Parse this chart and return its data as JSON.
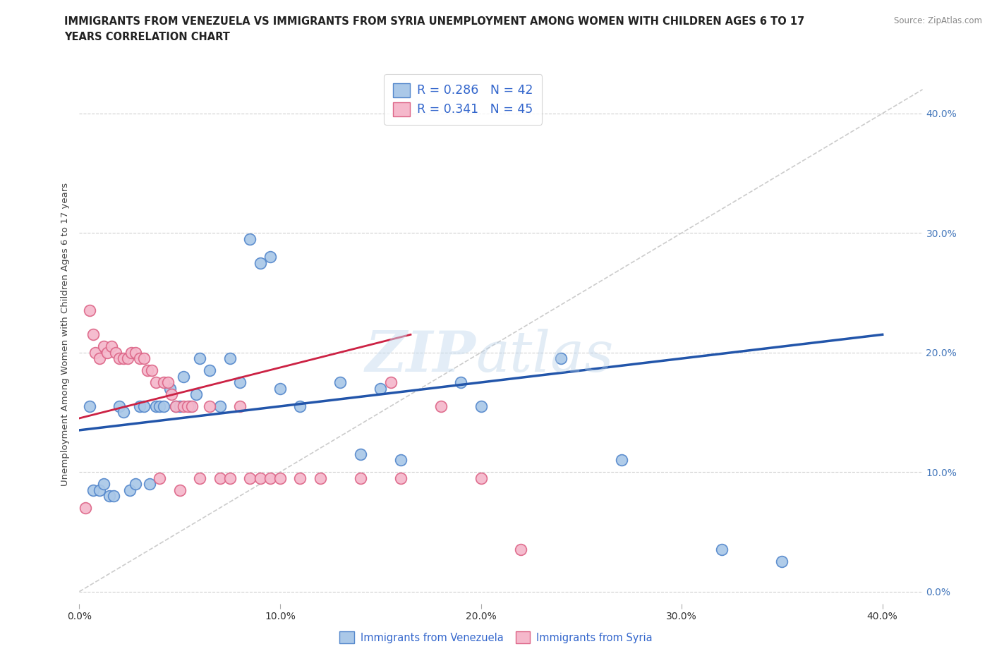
{
  "title_line1": "IMMIGRANTS FROM VENEZUELA VS IMMIGRANTS FROM SYRIA UNEMPLOYMENT AMONG WOMEN WITH CHILDREN AGES 6 TO 17",
  "title_line2": "YEARS CORRELATION CHART",
  "ylabel": "Unemployment Among Women with Children Ages 6 to 17 years",
  "source": "Source: ZipAtlas.com",
  "watermark_zip": "ZIP",
  "watermark_atlas": "atlas",
  "xlim": [
    0.0,
    0.42
  ],
  "ylim": [
    -0.01,
    0.44
  ],
  "ytick_values": [
    0.0,
    0.1,
    0.2,
    0.3,
    0.4
  ],
  "ytick_labels": [
    "0.0%",
    "10.0%",
    "20.0%",
    "30.0%",
    "40.0%"
  ],
  "xtick_values": [
    0.0,
    0.1,
    0.2,
    0.3,
    0.4
  ],
  "xtick_labels": [
    "0.0%",
    "10.0%",
    "20.0%",
    "30.0%",
    "40.0%"
  ],
  "grid_color": "#d0d0d0",
  "background_color": "#ffffff",
  "venezuela_color": "#aac8e8",
  "venezuela_edge": "#5588cc",
  "syria_color": "#f5b8cb",
  "syria_edge": "#dd6688",
  "venezuela_line_color": "#2255aa",
  "syria_line_color": "#cc2244",
  "diagonal_color": "#cccccc",
  "legend_r_venezuela": "0.286",
  "legend_n_venezuela": "42",
  "legend_r_syria": "0.341",
  "legend_n_syria": "45",
  "venezuela_label": "Immigrants from Venezuela",
  "syria_label": "Immigrants from Syria",
  "venezuela_x": [
    0.005,
    0.007,
    0.01,
    0.012,
    0.015,
    0.017,
    0.02,
    0.022,
    0.025,
    0.028,
    0.03,
    0.032,
    0.035,
    0.038,
    0.04,
    0.042,
    0.045,
    0.048,
    0.05,
    0.052,
    0.055,
    0.058,
    0.06,
    0.065,
    0.07,
    0.075,
    0.08,
    0.085,
    0.09,
    0.095,
    0.1,
    0.11,
    0.13,
    0.14,
    0.15,
    0.16,
    0.19,
    0.2,
    0.24,
    0.27,
    0.32,
    0.35
  ],
  "venezuela_y": [
    0.155,
    0.085,
    0.085,
    0.09,
    0.08,
    0.08,
    0.155,
    0.15,
    0.085,
    0.09,
    0.155,
    0.155,
    0.09,
    0.155,
    0.155,
    0.155,
    0.17,
    0.155,
    0.155,
    0.18,
    0.155,
    0.165,
    0.195,
    0.185,
    0.155,
    0.195,
    0.175,
    0.295,
    0.275,
    0.28,
    0.17,
    0.155,
    0.175,
    0.115,
    0.17,
    0.11,
    0.175,
    0.155,
    0.195,
    0.11,
    0.035,
    0.025
  ],
  "syria_x": [
    0.003,
    0.005,
    0.007,
    0.008,
    0.01,
    0.012,
    0.014,
    0.016,
    0.018,
    0.02,
    0.022,
    0.024,
    0.026,
    0.028,
    0.03,
    0.032,
    0.034,
    0.036,
    0.038,
    0.04,
    0.042,
    0.044,
    0.046,
    0.048,
    0.05,
    0.052,
    0.054,
    0.056,
    0.06,
    0.065,
    0.07,
    0.075,
    0.08,
    0.085,
    0.09,
    0.095,
    0.1,
    0.11,
    0.12,
    0.14,
    0.155,
    0.16,
    0.18,
    0.2,
    0.22
  ],
  "syria_y": [
    0.07,
    0.235,
    0.215,
    0.2,
    0.195,
    0.205,
    0.2,
    0.205,
    0.2,
    0.195,
    0.195,
    0.195,
    0.2,
    0.2,
    0.195,
    0.195,
    0.185,
    0.185,
    0.175,
    0.095,
    0.175,
    0.175,
    0.165,
    0.155,
    0.085,
    0.155,
    0.155,
    0.155,
    0.095,
    0.155,
    0.095,
    0.095,
    0.155,
    0.095,
    0.095,
    0.095,
    0.095,
    0.095,
    0.095,
    0.095,
    0.175,
    0.095,
    0.155,
    0.095,
    0.035
  ]
}
